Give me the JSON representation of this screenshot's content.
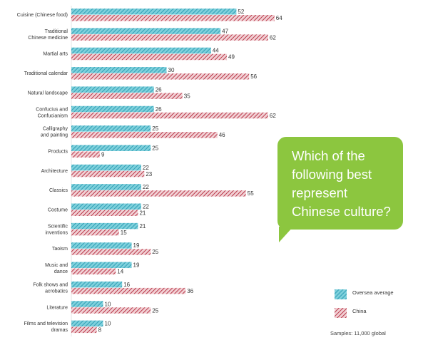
{
  "chart_data": {
    "type": "bar",
    "orientation": "horizontal",
    "categories": [
      "Cuisine (Chinese food)",
      "Traditional\nChinese medicine",
      "Martial arts",
      "Traditional calendar",
      "Natural landscape",
      "Confucius and\nConfucianism",
      "Calligraphy\nand painting",
      "Products",
      "Architecture",
      "Classics",
      "Costume",
      "Scientific\ninventions",
      "Taoism",
      "Music and\ndance",
      "Folk shows and\nacrobatics",
      "Literature",
      "Films and television\ndramas"
    ],
    "series": [
      {
        "name": "Oversea average",
        "values": [
          52,
          47,
          44,
          30,
          26,
          26,
          25,
          25,
          22,
          22,
          22,
          21,
          19,
          19,
          16,
          10,
          10
        ]
      },
      {
        "name": "China",
        "values": [
          64,
          62,
          49,
          56,
          35,
          62,
          46,
          9,
          23,
          55,
          21,
          15,
          25,
          14,
          36,
          25,
          8
        ]
      }
    ],
    "xlim": [
      0,
      70
    ],
    "grid": false,
    "legend_position": "bottom-right"
  },
  "colors": {
    "oversea": "#4cb8cc",
    "china": "#b9384a",
    "bubble": "#8cc63f",
    "label_text": "#333333"
  },
  "callout": {
    "text": "Which of the following best represent Chinese culture?"
  },
  "legend": {
    "oversea_label": "Oversea average",
    "china_label": "China"
  },
  "footer": {
    "samples": "Samples: 11,000 global"
  }
}
